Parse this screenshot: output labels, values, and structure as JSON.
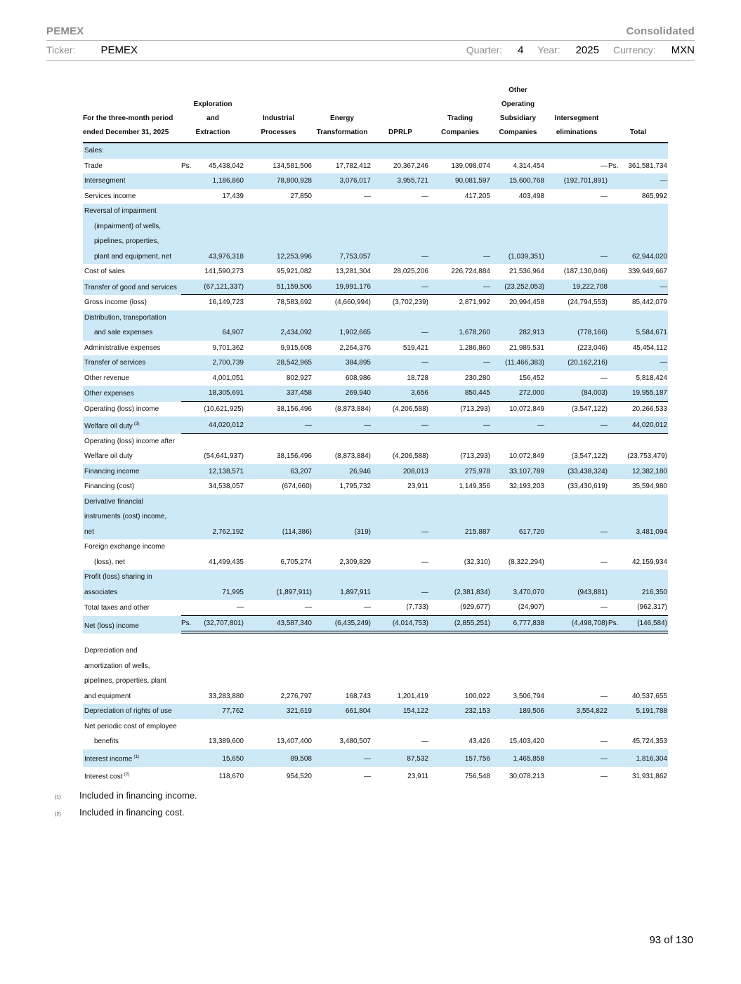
{
  "header": {
    "company": "PEMEX",
    "report_type": "Consolidated",
    "ticker_label": "Ticker:",
    "ticker_value": "PEMEX",
    "quarter_label": "Quarter:",
    "quarter_value": "4",
    "year_label": "Year:",
    "year_value": "2025",
    "currency_label": "Currency:",
    "currency_value": "MXN"
  },
  "table": {
    "period_header": [
      "For the three-month period",
      "ended December 31, 2025"
    ],
    "columns": [
      [
        "Exploration",
        "and",
        "Extraction"
      ],
      [
        "Industrial",
        "Processes"
      ],
      [
        "Energy",
        "Transformation"
      ],
      [
        "DPRLP"
      ],
      [
        "Trading",
        "Companies"
      ],
      [
        "Other",
        "Operating",
        "Subsidiary",
        "Companies"
      ],
      [
        "Intersegment",
        "eliminations"
      ],
      [
        "Total"
      ]
    ],
    "currency_prefix": "Ps.",
    "rows": [
      {
        "lines": [
          {
            "t": "Sales:",
            "i": 0
          }
        ],
        "shaded": true,
        "values": null
      },
      {
        "lines": [
          {
            "t": "Trade",
            "i": 0
          }
        ],
        "shaded": false,
        "ps_first": true,
        "ps_total": true,
        "values": [
          "45,438,042",
          "134,581,506",
          "17,782,412",
          "20,367,246",
          "139,098,074",
          "4,314,454",
          "—",
          "361,581,734"
        ]
      },
      {
        "lines": [
          {
            "t": "Intersegment",
            "i": 0
          }
        ],
        "shaded": true,
        "values": [
          "1,186,860",
          "78,800,928",
          "3,076,017",
          "3,955,721",
          "90,081,597",
          "15,600,768",
          "(192,701,891)",
          "—"
        ]
      },
      {
        "lines": [
          {
            "t": "Services income",
            "i": 0
          }
        ],
        "shaded": false,
        "values": [
          "17,439",
          "27,850",
          "—",
          "—",
          "417,205",
          "403,498",
          "—",
          "865,992"
        ]
      },
      {
        "lines": [
          {
            "t": "Reversal of impairment",
            "i": 0
          },
          {
            "t": "(impairment) of wells,",
            "i": 1
          },
          {
            "t": "pipelines, properties,",
            "i": 1
          },
          {
            "t": "plant and equipment, net",
            "i": 1
          }
        ],
        "shaded": true,
        "values": [
          "43,976,318",
          "12,253,996",
          "7,753,057",
          "—",
          "—",
          "(1,039,351)",
          "—",
          "62,944,020"
        ]
      },
      {
        "lines": [
          {
            "t": "Cost of sales",
            "i": 0
          }
        ],
        "shaded": false,
        "values": [
          "141,590,273",
          "95,921,082",
          "13,281,304",
          "28,025,206",
          "226,724,884",
          "21,536,964",
          "(187,130,046)",
          "339,949,667"
        ]
      },
      {
        "lines": [
          {
            "t": "Transfer of good and services",
            "i": 0
          }
        ],
        "shaded": true,
        "border": "single",
        "values": [
          "(67,121,337)",
          "51,159,506",
          "19,991,176",
          "—",
          "—",
          "(23,252,053)",
          "19,222,708",
          "—"
        ]
      },
      {
        "lines": [
          {
            "t": "Gross income (loss)",
            "i": 0
          }
        ],
        "shaded": false,
        "values": [
          "16,149,723",
          "78,583,692",
          "(4,660,994)",
          "(3,702,239)",
          "2,871,992",
          "20,994,458",
          "(24,794,553)",
          "85,442,079"
        ]
      },
      {
        "lines": [
          {
            "t": "Distribution, transportation",
            "i": 0
          },
          {
            "t": "and sale expenses",
            "i": 1
          }
        ],
        "shaded": true,
        "values": [
          "64,907",
          "2,434,092",
          "1,902,665",
          "—",
          "1,678,260",
          "282,913",
          "(778,166)",
          "5,584,671"
        ]
      },
      {
        "lines": [
          {
            "t": "Administrative expenses",
            "i": 0
          }
        ],
        "shaded": false,
        "values": [
          "9,701,362",
          "9,915,608",
          "2,264,376",
          "519,421",
          "1,286,860",
          "21,989,531",
          "(223,046)",
          "45,454,112"
        ]
      },
      {
        "lines": [
          {
            "t": "Transfer of services",
            "i": 0
          }
        ],
        "shaded": true,
        "values": [
          "2,700,739",
          "28,542,965",
          "384,895",
          "—",
          "—",
          "(11,466,383)",
          "(20,162,216)",
          "—"
        ]
      },
      {
        "lines": [
          {
            "t": "Other revenue",
            "i": 0
          }
        ],
        "shaded": false,
        "values": [
          "4,001,051",
          "802,927",
          "608,986",
          "18,728",
          "230,280",
          "156,452",
          "—",
          "5,818,424"
        ]
      },
      {
        "lines": [
          {
            "t": "Other expenses",
            "i": 0
          }
        ],
        "shaded": true,
        "border": "single",
        "values": [
          "18,305,691",
          "337,458",
          "269,940",
          "3,656",
          "850,445",
          "272,000",
          "(84,003)",
          "19,955,187"
        ]
      },
      {
        "lines": [
          {
            "t": "Operating (loss) income",
            "i": 0
          }
        ],
        "shaded": false,
        "values": [
          "(10,621,925)",
          "38,156,496",
          "(8,873,884)",
          "(4,206,588)",
          "(713,293)",
          "10,072,849",
          "(3,547,122)",
          "20,266,533"
        ]
      },
      {
        "lines": [
          {
            "t": "Welfare oil duty",
            "i": 0
          }
        ],
        "sup": "(3)",
        "shaded": true,
        "border": "single",
        "values": [
          "44,020,012",
          "—",
          "—",
          "—",
          "—",
          "—",
          "—",
          "44,020,012"
        ]
      },
      {
        "lines": [
          {
            "t": "Operating (loss) income after",
            "i": 0
          },
          {
            "t": "Welfare oil duty",
            "i": 0
          }
        ],
        "shaded": false,
        "values": [
          "(54,641,937)",
          "38,156,496",
          "(8,873,884)",
          "(4,206,588)",
          "(713,293)",
          "10,072,849",
          "(3,547,122)",
          "(23,753,479)"
        ]
      },
      {
        "lines": [
          {
            "t": "Financing income",
            "i": 0
          }
        ],
        "shaded": true,
        "values": [
          "12,138,571",
          "63,207",
          "26,946",
          "208,013",
          "275,978",
          "33,107,789",
          "(33,438,324)",
          "12,382,180"
        ]
      },
      {
        "lines": [
          {
            "t": "Financing (cost)",
            "i": 0
          }
        ],
        "shaded": false,
        "values": [
          "34,538,057",
          "(674,660)",
          "1,795,732",
          "23,911",
          "1,149,356",
          "32,193,203",
          "(33,430,619)",
          "35,594,980"
        ]
      },
      {
        "lines": [
          {
            "t": "Derivative financial",
            "i": 0
          },
          {
            "t": "instruments (cost) income,",
            "i": 0
          },
          {
            "t": "net",
            "i": 0
          }
        ],
        "shaded": true,
        "values": [
          "2,762,192",
          "(114,386)",
          "(319)",
          "—",
          "215,887",
          "617,720",
          "—",
          "3,481,094"
        ]
      },
      {
        "lines": [
          {
            "t": "Foreign exchange income",
            "i": 0
          },
          {
            "t": "(loss), net",
            "i": 1
          }
        ],
        "shaded": false,
        "values": [
          "41,499,435",
          "6,705,274",
          "2,309,829",
          "—",
          "(32,310)",
          "(8,322,294)",
          "—",
          "42,159,934"
        ]
      },
      {
        "lines": [
          {
            "t": "Profit (loss) sharing in",
            "i": 0
          },
          {
            "t": "associates",
            "i": 0
          }
        ],
        "shaded": true,
        "values": [
          "71,995",
          "(1,897,911)",
          "1,897,911",
          "—",
          "(2,381,834)",
          "3,470,070",
          "(943,881)",
          "216,350"
        ]
      },
      {
        "lines": [
          {
            "t": "Total taxes and other",
            "i": 0
          }
        ],
        "shaded": false,
        "border": "single",
        "values": [
          "—",
          "—",
          "—",
          "(7,733)",
          "(929,677)",
          "(24,907)",
          "—",
          "(962,317)"
        ]
      },
      {
        "lines": [
          {
            "t": "Net (loss) income",
            "i": 0
          }
        ],
        "shaded": true,
        "border": "double",
        "ps_first": true,
        "ps_total": true,
        "values": [
          "(32,707,801)",
          "43,587,340",
          "(6,435,249)",
          "(4,014,753)",
          "(2,855,251)",
          "6,777,838",
          "(4,498,708)",
          "(146,584)"
        ]
      },
      {
        "lines": [
          {
            "t": "Depreciation and",
            "i": 0
          },
          {
            "t": "amortization of wells,",
            "i": 0
          },
          {
            "t": "pipelines, properties, plant",
            "i": 0
          },
          {
            "t": "and equipment",
            "i": 0
          }
        ],
        "shaded": false,
        "gap_before": true,
        "values": [
          "33,283,880",
          "2,276,797",
          "168,743",
          "1,201,419",
          "100,022",
          "3,506,794",
          "—",
          "40,537,655"
        ]
      },
      {
        "lines": [
          {
            "t": "Depreciation of rights of use",
            "i": 0
          }
        ],
        "shaded": true,
        "values": [
          "77,762",
          "321,619",
          "661,804",
          "154,122",
          "232,153",
          "189,506",
          "3,554,822",
          "5,191,788"
        ]
      },
      {
        "lines": [
          {
            "t": "Net periodic cost of employee",
            "i": 0
          },
          {
            "t": "benefits",
            "i": 1
          }
        ],
        "shaded": false,
        "values": [
          "13,389,600",
          "13,407,400",
          "3,480,507",
          "—",
          "43,426",
          "15,403,420",
          "—",
          "45,724,353"
        ]
      },
      {
        "lines": [
          {
            "t": "Interest income",
            "i": 0
          }
        ],
        "sup": "(1)",
        "shaded": true,
        "values": [
          "15,650",
          "89,508",
          "—",
          "87,532",
          "157,756",
          "1,465,858",
          "—",
          "1,816,304"
        ]
      },
      {
        "lines": [
          {
            "t": "Interest cost",
            "i": 0
          }
        ],
        "sup": "(2)",
        "shaded": false,
        "values": [
          "118,670",
          "954,520",
          "—",
          "23,911",
          "756,548",
          "30,078,213",
          "—",
          "31,931,862"
        ]
      }
    ]
  },
  "footnotes": [
    {
      "marker": "(1)",
      "text": "Included in financing income."
    },
    {
      "marker": "(2)",
      "text": "Included in financing cost."
    }
  ],
  "page_number": "93 of 130"
}
